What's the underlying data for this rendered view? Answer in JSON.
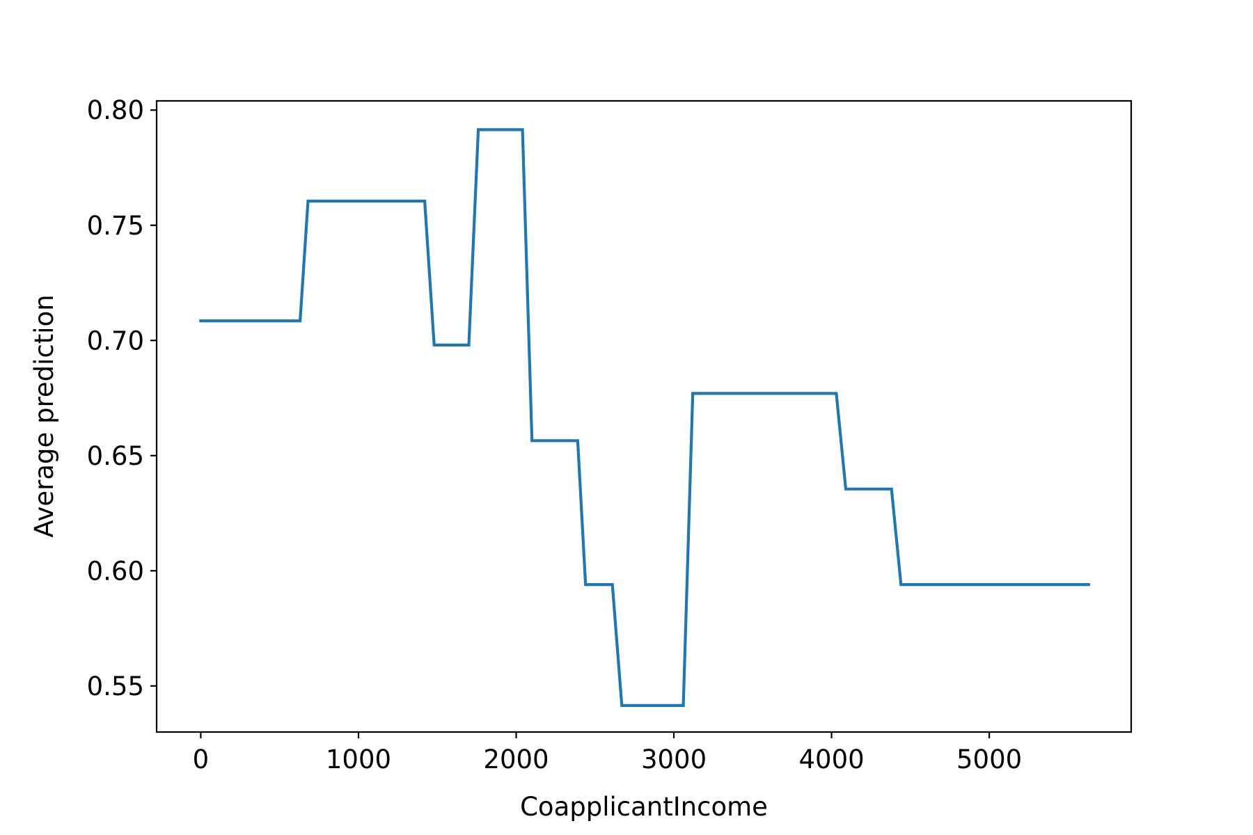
{
  "chart_data": {
    "type": "line",
    "title": "",
    "xlabel": "CoapplicantIncome",
    "ylabel": "Average prediction",
    "xlim": [
      -280,
      5900
    ],
    "ylim": [
      0.53,
      0.804
    ],
    "xticks": [
      0,
      1000,
      2000,
      3000,
      4000,
      5000
    ],
    "xtick_labels": [
      "0",
      "1000",
      "2000",
      "3000",
      "4000",
      "5000"
    ],
    "yticks": [
      0.55,
      0.6,
      0.65,
      0.7,
      0.75,
      0.8
    ],
    "ytick_labels": [
      "0.55",
      "0.60",
      "0.65",
      "0.70",
      "0.75",
      "0.80"
    ],
    "grid": false,
    "legend": "none",
    "series": [
      {
        "color": "#1f77b4",
        "x": [
          0,
          630,
          680,
          1420,
          1480,
          1700,
          1760,
          2040,
          2100,
          2390,
          2440,
          2610,
          2670,
          3060,
          3120,
          4030,
          4090,
          4380,
          4440,
          5630
        ],
        "y": [
          0.7085,
          0.7085,
          0.7605,
          0.7605,
          0.698,
          0.698,
          0.7915,
          0.7915,
          0.6565,
          0.6565,
          0.594,
          0.594,
          0.5415,
          0.5415,
          0.677,
          0.677,
          0.6355,
          0.6355,
          0.594,
          0.594
        ]
      }
    ]
  }
}
